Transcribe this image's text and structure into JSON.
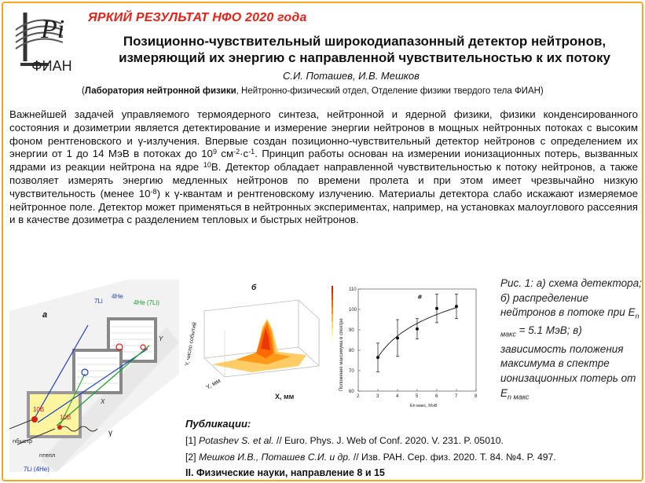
{
  "banner": "ЯРКИЙ РЕЗУЛЬТАТ НФО 2020 года",
  "logo": {
    "org_text": "ФИАН",
    "monogram": "LPi"
  },
  "title_line1": "Позиционно-чувствительный широкодиапазонный детектор нейтронов,",
  "title_line2": "измеряющий их энергию с направленной чувствительностью к их потоку",
  "authors": "С.И. Поташев, И.В. Мешков",
  "affiliation": {
    "open": "(",
    "lab": "Лаборатория нейтронной физики",
    "rest": ", Нейтронно-физический отдел, Отделение физики твердого тела ФИАН)"
  },
  "body": {
    "p1": "Важнейшей задачей управляемого термоядерного синтеза, нейтронной и ядерной физики, физики конденсированного состояния и дозиметрии является детектирование и измерение энергии нейтронов в мощных нейтронных потоках с высоким фоном рентгеновского и γ-излучения. Впервые создан позиционно-чувствительный детектор нейтронов с определением их энергии от 1 до 14 МэВ в потоках до 10",
    "sup1": "9",
    "p2": " см",
    "sup2": "-2",
    "p3": "·с",
    "sup3": "-1",
    "p4": ". Принцип работы основан на измерении ионизационных потерь, вызванных ядрами из реакции нейтрона на ядре ",
    "sup4": "10",
    "p5": "B. Детектор обладает направленной чувствительностью к потоку нейтронов, а также позволяет измерять энергию медленных нейтронов по времени пролета и при этом имеет чрезвычайно низкую чувствительность (менее 10",
    "sup5": "-8",
    "p6": ") к γ-квантам и рентгеновскому излучению. Материалы детектора слабо искажают измеряемое нейтронное поле. Детектор может применяться в нейтронных экспериментах, например, на установках малоуглового рассеяния и в качестве дозиметра с разделением тепловых и быстрых нейтронов."
  },
  "fig_a": {
    "label": "а",
    "li7_1": "7Li",
    "he4_1": "4He",
    "he4_2": "4He (7Li)",
    "b10_1": "10B",
    "b10_2": "10B",
    "y_axis": "Y",
    "x_axis": "X",
    "gamma": "γ",
    "n_fast": "nбыстр",
    "n_thermal": "nтепл",
    "li7_he": "7Li (4He)"
  },
  "fig_b": {
    "label": "б",
    "zlabel": "Y, число событий",
    "xlabel": "X, мм",
    "ylabel": "Y, мм"
  },
  "fig_c": {
    "label": "в",
    "colorbar_ticks": [
      "80",
      "70",
      "60",
      "50",
      "40",
      "30",
      "20",
      "10",
      "0"
    ]
  },
  "chart_data": {
    "type": "scatter",
    "title": "в",
    "xlabel": "Eп макс, МэВ",
    "ylabel": "Положение максимума в спектре",
    "xlim": [
      2,
      8
    ],
    "ylim": [
      60,
      110
    ],
    "xticks": [
      2,
      3,
      4,
      5,
      6,
      7,
      8
    ],
    "yticks": [
      60,
      70,
      80,
      90,
      100,
      110
    ],
    "grid": false,
    "series": [
      {
        "x": [
          3,
          4,
          5,
          6,
          7
        ],
        "y": [
          76.5,
          86,
          90.5,
          100.5,
          101.5
        ],
        "yerr": [
          7,
          9,
          5,
          7,
          6
        ],
        "fit_curve": true
      }
    ]
  },
  "caption": {
    "line1": "Рис. 1: а) схема детектора; б) распределение нейтронов в потоке при E",
    "sub1": "n макс",
    "line2": " = 5.1 МэВ; в) зависимость положения максимума в спектре ионизационных потерь от E",
    "sub2": "n макс"
  },
  "publications": {
    "heading": "Публикации:",
    "pub1_num": "[1] ",
    "pub1_authors": "Potashev S. et al.",
    "pub1_rest": " // Euro. Phys. J. Web of Conf. 2020. V. 231. P. 05010.",
    "pub2_num": "[2] ",
    "pub2_authors": "Мешков И.В., Поташев С.И. и др.",
    "pub2_rest": " // Изв. РАН. Сер. физ. 2020. Т. 84. №4. P. 497."
  },
  "footer": "II. Физические науки, направление 8 и 15",
  "colors": {
    "accent": "#e0241b",
    "border": "#f5a623",
    "heat": "#ff8c00"
  }
}
